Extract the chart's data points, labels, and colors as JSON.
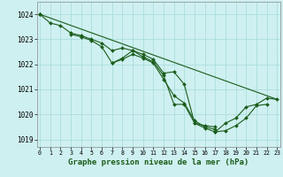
{
  "title": "Graphe pression niveau de la mer (hPa)",
  "bg_color": "#cff0f0",
  "grid_color": "#aadddd",
  "line_color": "#1a5c1a",
  "marker_color": "#1a5c1a",
  "xlim": [
    -0.3,
    23.3
  ],
  "ylim": [
    1018.7,
    1024.5
  ],
  "yticks": [
    1019,
    1020,
    1021,
    1022,
    1023,
    1024
  ],
  "xticks": [
    0,
    1,
    2,
    3,
    4,
    5,
    6,
    7,
    8,
    9,
    10,
    11,
    12,
    13,
    14,
    15,
    16,
    17,
    18,
    19,
    20,
    21,
    22,
    23
  ],
  "series": [
    [
      1024.0,
      1023.65,
      1023.55,
      1023.25,
      1023.15,
      1023.0,
      1022.85,
      1022.55,
      1022.65,
      1022.55,
      1022.4,
      1022.2,
      1021.65,
      1021.7,
      1021.2,
      1019.65,
      1019.55,
      1019.5,
      null,
      null,
      null,
      null,
      null,
      null
    ],
    [
      1024.0,
      null,
      null,
      1023.2,
      1023.1,
      1022.95,
      1022.7,
      1022.05,
      1022.2,
      1022.4,
      1022.25,
      1022.05,
      1021.4,
      1020.75,
      1020.45,
      1019.75,
      1019.5,
      1019.4,
      null,
      null,
      null,
      null,
      null,
      null
    ],
    [
      1024.0,
      null,
      null,
      null,
      null,
      null,
      null,
      1022.05,
      1022.25,
      1022.55,
      1022.3,
      1022.1,
      1021.55,
      1020.4,
      1020.4,
      1019.65,
      1019.45,
      1019.3,
      1019.35,
      1019.55,
      1019.85,
      1020.35,
      1020.4,
      null
    ],
    [
      1024.0,
      null,
      null,
      null,
      null,
      null,
      null,
      null,
      null,
      null,
      null,
      null,
      null,
      null,
      null,
      null,
      null,
      1019.3,
      1019.65,
      1019.85,
      1020.3,
      1020.4,
      1020.65,
      1020.6
    ]
  ],
  "long_series_x": [
    0,
    23
  ],
  "long_series_y": [
    1024.0,
    1020.6
  ]
}
